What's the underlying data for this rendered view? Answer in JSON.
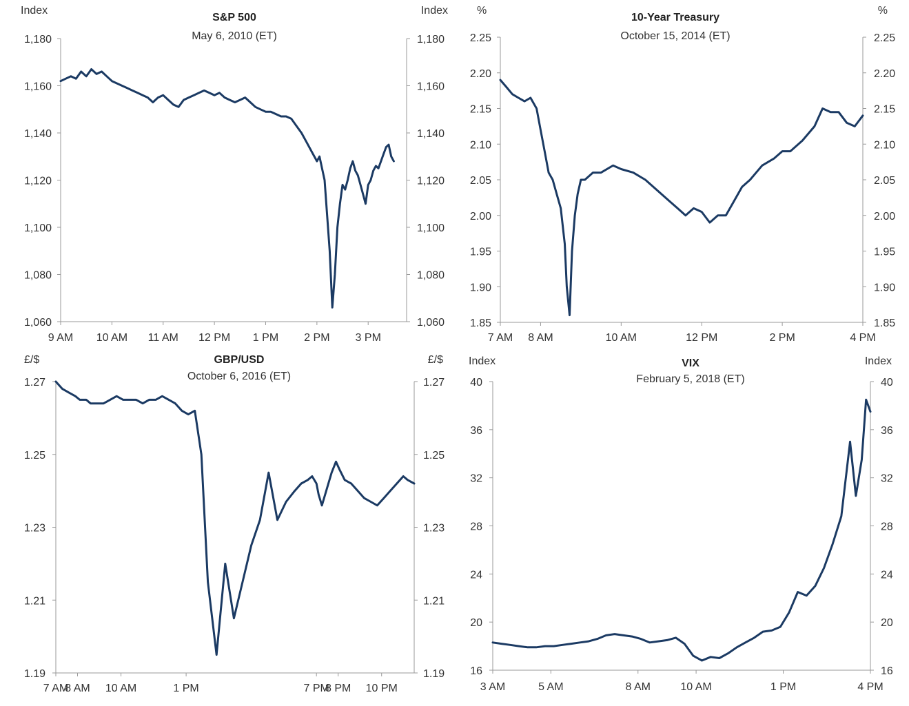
{
  "colors": {
    "series": "#1b3a63",
    "axis": "#999999",
    "text": "#333333"
  },
  "chart_data": [
    {
      "type": "line",
      "title": "S&P 500",
      "subtitle": "May 6, 2010 (ET)",
      "left_unit": "Index",
      "right_unit": "Index",
      "ylim": [
        1060,
        1180
      ],
      "yticks": [
        1060,
        1080,
        1100,
        1120,
        1140,
        1160,
        1180
      ],
      "ytick_labels": [
        "1,060",
        "1,080",
        "1,100",
        "1,120",
        "1,140",
        "1,160",
        "1,180"
      ],
      "x_unit": "hours ET",
      "xlim": [
        9,
        15.75
      ],
      "xticks": [
        9,
        10,
        11,
        12,
        13,
        14,
        15
      ],
      "xtick_labels": [
        "9 AM",
        "10 AM",
        "11 AM",
        "12 PM",
        "1 PM",
        "2 PM",
        "3 PM"
      ],
      "grid": false,
      "series": [
        {
          "x": [
            9.0,
            9.1,
            9.2,
            9.3,
            9.4,
            9.5,
            9.6,
            9.7,
            9.8,
            9.9,
            10.0,
            10.1,
            10.2,
            10.3,
            10.4,
            10.5,
            10.6,
            10.7,
            10.8,
            10.9,
            11.0,
            11.1,
            11.2,
            11.3,
            11.4,
            11.5,
            11.6,
            11.7,
            11.8,
            11.9,
            12.0,
            12.1,
            12.2,
            12.3,
            12.4,
            12.5,
            12.6,
            12.7,
            12.8,
            12.9,
            13.0,
            13.1,
            13.2,
            13.3,
            13.4,
            13.5,
            13.6,
            13.7,
            13.8,
            13.9,
            14.0,
            14.05,
            14.1,
            14.15,
            14.2,
            14.25,
            14.3,
            14.35,
            14.4,
            14.45,
            14.5,
            14.55,
            14.6,
            14.65,
            14.7,
            14.75,
            14.8,
            14.85,
            14.9,
            14.95,
            15.0,
            15.05,
            15.1,
            15.15,
            15.2,
            15.25,
            15.3,
            15.35,
            15.4,
            15.45,
            15.5
          ],
          "y": [
            1162,
            1163,
            1164,
            1163,
            1166,
            1164,
            1167,
            1165,
            1166,
            1164,
            1162,
            1161,
            1160,
            1159,
            1158,
            1157,
            1156,
            1155,
            1153,
            1155,
            1156,
            1154,
            1152,
            1151,
            1154,
            1155,
            1156,
            1157,
            1158,
            1157,
            1156,
            1157,
            1155,
            1154,
            1153,
            1154,
            1155,
            1153,
            1151,
            1150,
            1149,
            1149,
            1148,
            1147,
            1147,
            1146,
            1143,
            1140,
            1136,
            1132,
            1128,
            1130,
            1125,
            1120,
            1105,
            1090,
            1066,
            1080,
            1100,
            1110,
            1118,
            1116,
            1120,
            1125,
            1128,
            1124,
            1122,
            1118,
            1114,
            1110,
            1118,
            1120,
            1124,
            1126,
            1125,
            1128,
            1131,
            1134,
            1135,
            1130,
            1128
          ]
        }
      ]
    },
    {
      "type": "line",
      "title": "10-Year Treasury",
      "subtitle": "October 15, 2014 (ET)",
      "left_unit": "%",
      "right_unit": "%",
      "ylim": [
        1.85,
        2.25
      ],
      "yticks": [
        1.85,
        1.9,
        1.95,
        2.0,
        2.05,
        2.1,
        2.15,
        2.2,
        2.25
      ],
      "ytick_labels": [
        "1.85",
        "1.90",
        "1.95",
        "2.00",
        "2.05",
        "2.10",
        "2.15",
        "2.20",
        "2.25"
      ],
      "x_unit": "hours ET",
      "xlim": [
        7,
        16
      ],
      "xticks": [
        7,
        8,
        10,
        12,
        14,
        16
      ],
      "xtick_labels": [
        "7 AM",
        "8 AM",
        "10 AM",
        "12 PM",
        "2 PM",
        "4 PM"
      ],
      "grid": false,
      "series": [
        {
          "x": [
            7.0,
            7.15,
            7.3,
            7.45,
            7.6,
            7.75,
            7.9,
            8.0,
            8.1,
            8.2,
            8.3,
            8.4,
            8.5,
            8.6,
            8.65,
            8.72,
            8.78,
            8.85,
            8.92,
            9.0,
            9.1,
            9.3,
            9.5,
            9.8,
            10.0,
            10.3,
            10.6,
            11.0,
            11.2,
            11.4,
            11.6,
            11.8,
            12.0,
            12.2,
            12.4,
            12.6,
            12.8,
            13.0,
            13.2,
            13.5,
            13.8,
            14.0,
            14.2,
            14.5,
            14.8,
            15.0,
            15.2,
            15.4,
            15.6,
            15.8,
            16.0
          ],
          "y": [
            2.19,
            2.18,
            2.17,
            2.165,
            2.16,
            2.165,
            2.15,
            2.12,
            2.09,
            2.06,
            2.05,
            2.03,
            2.01,
            1.96,
            1.9,
            1.86,
            1.95,
            2.0,
            2.03,
            2.05,
            2.05,
            2.06,
            2.06,
            2.07,
            2.065,
            2.06,
            2.05,
            2.03,
            2.02,
            2.01,
            2.0,
            2.01,
            2.005,
            1.99,
            2.0,
            2.0,
            2.02,
            2.04,
            2.05,
            2.07,
            2.08,
            2.09,
            2.09,
            2.105,
            2.125,
            2.15,
            2.145,
            2.145,
            2.13,
            2.125,
            2.14
          ]
        }
      ]
    },
    {
      "type": "line",
      "title": "GBP/USD",
      "subtitle": "October 6, 2016 (ET)",
      "left_unit": "£/$",
      "right_unit": "£/$",
      "ylim": [
        1.19,
        1.27
      ],
      "yticks": [
        1.19,
        1.21,
        1.23,
        1.25,
        1.27
      ],
      "ytick_labels": [
        "1.19",
        "1.21",
        "1.23",
        "1.25",
        "1.27"
      ],
      "x_unit": "hours ET, 6 Oct to 7 Oct",
      "xlim": [
        7,
        23.5
      ],
      "xticks": [
        7,
        8,
        10,
        13,
        19,
        20,
        22
      ],
      "xtick_labels": [
        "7 AM",
        "8 AM",
        "10 AM",
        "1 PM",
        "7 PM",
        "8 PM",
        "10 PM"
      ],
      "grid": false,
      "series": [
        {
          "x": [
            7.0,
            7.3,
            7.6,
            7.9,
            8.1,
            8.4,
            8.6,
            8.9,
            9.2,
            9.5,
            9.8,
            10.1,
            10.4,
            10.7,
            11.0,
            11.3,
            11.6,
            11.9,
            12.2,
            12.5,
            12.8,
            13.1,
            13.4,
            13.7,
            14.0,
            14.4,
            14.8,
            15.2,
            15.6,
            16.0,
            16.4,
            16.8,
            17.2,
            17.6,
            18.0,
            18.3,
            18.6,
            18.8,
            19.0,
            19.1,
            19.25,
            19.45,
            19.7,
            19.9,
            20.05,
            20.3,
            20.6,
            20.9,
            21.2,
            21.5,
            21.8,
            22.1,
            22.4,
            22.7,
            23.0,
            23.2,
            23.5
          ],
          "y": [
            1.27,
            1.268,
            1.267,
            1.266,
            1.265,
            1.265,
            1.264,
            1.264,
            1.264,
            1.265,
            1.266,
            1.265,
            1.265,
            1.265,
            1.264,
            1.265,
            1.265,
            1.266,
            1.265,
            1.264,
            1.262,
            1.261,
            1.262,
            1.25,
            1.215,
            1.195,
            1.22,
            1.205,
            1.215,
            1.225,
            1.232,
            1.245,
            1.232,
            1.237,
            1.24,
            1.242,
            1.243,
            1.244,
            1.242,
            1.239,
            1.236,
            1.24,
            1.245,
            1.248,
            1.246,
            1.243,
            1.242,
            1.24,
            1.238,
            1.237,
            1.236,
            1.238,
            1.24,
            1.242,
            1.244,
            1.243,
            1.242
          ]
        }
      ]
    },
    {
      "type": "line",
      "title": "VIX",
      "subtitle": "February 5, 2018 (ET)",
      "left_unit": "Index",
      "right_unit": "Index",
      "ylim": [
        16,
        40
      ],
      "yticks": [
        16,
        20,
        24,
        28,
        32,
        36,
        40
      ],
      "ytick_labels": [
        "16",
        "20",
        "24",
        "28",
        "32",
        "36",
        "40"
      ],
      "x_unit": "hours ET",
      "xlim": [
        3,
        16
      ],
      "xticks": [
        3,
        5,
        8,
        10,
        13,
        16
      ],
      "xtick_labels": [
        "3 AM",
        "5 AM",
        "8 AM",
        "10 AM",
        "1 PM",
        "4 PM"
      ],
      "grid": false,
      "series": [
        {
          "x": [
            3.0,
            3.3,
            3.6,
            3.9,
            4.2,
            4.5,
            4.8,
            5.1,
            5.4,
            5.7,
            6.0,
            6.3,
            6.6,
            6.9,
            7.2,
            7.5,
            7.8,
            8.1,
            8.4,
            8.7,
            9.0,
            9.3,
            9.6,
            9.9,
            10.2,
            10.5,
            10.8,
            11.1,
            11.4,
            11.7,
            12.0,
            12.3,
            12.6,
            12.9,
            13.2,
            13.5,
            13.8,
            14.1,
            14.4,
            14.7,
            15.0,
            15.3,
            15.5,
            15.7,
            15.85,
            16.0
          ],
          "y": [
            18.3,
            18.2,
            18.1,
            18.0,
            17.9,
            17.9,
            18.0,
            18.0,
            18.1,
            18.2,
            18.3,
            18.4,
            18.6,
            18.9,
            19.0,
            18.9,
            18.8,
            18.6,
            18.3,
            18.4,
            18.5,
            18.7,
            18.2,
            17.2,
            16.8,
            17.1,
            17.0,
            17.4,
            17.9,
            18.3,
            18.7,
            19.2,
            19.3,
            19.6,
            20.8,
            22.5,
            22.2,
            23.0,
            24.5,
            26.5,
            28.8,
            35.0,
            30.5,
            33.5,
            38.5,
            37.5
          ]
        }
      ]
    }
  ]
}
